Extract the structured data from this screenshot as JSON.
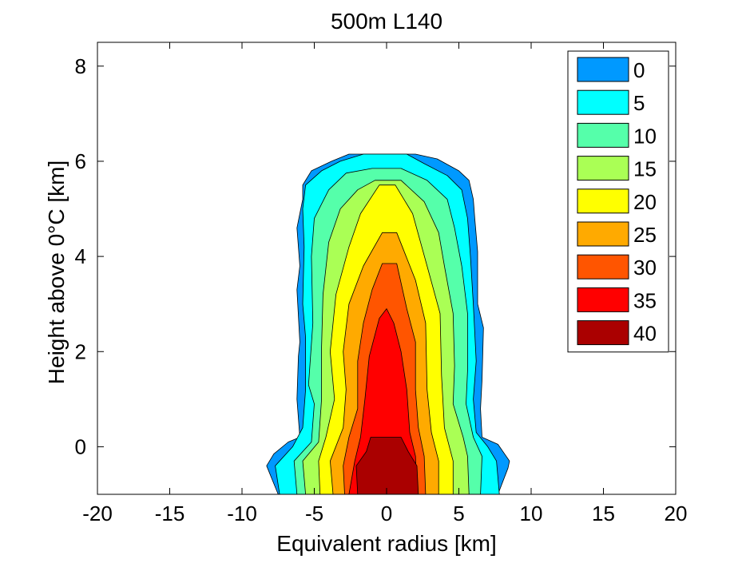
{
  "chart_data": {
    "type": "contourf",
    "title": "500m L140",
    "xlabel": "Equivalent radius [km]",
    "ylabel": "Height above 0°C [km]",
    "xlim": [
      -20,
      20
    ],
    "ylim": [
      -1,
      8.5
    ],
    "xticks": [
      -20,
      -15,
      -10,
      -5,
      0,
      5,
      10,
      15,
      20
    ],
    "yticks": [
      0,
      2,
      4,
      6,
      8
    ],
    "legend_position": "top-right",
    "grid": false,
    "levels": [
      {
        "label": "0",
        "color": "#0099ff"
      },
      {
        "label": "5",
        "color": "#00ffff"
      },
      {
        "label": "10",
        "color": "#55ffaa"
      },
      {
        "label": "15",
        "color": "#aaff55"
      },
      {
        "label": "20",
        "color": "#ffff00"
      },
      {
        "label": "25",
        "color": "#ffaa00"
      },
      {
        "label": "30",
        "color": "#ff5500"
      },
      {
        "label": "35",
        "color": "#ff0000"
      },
      {
        "label": "40",
        "color": "#aa0000"
      }
    ],
    "contours": [
      {
        "label": "0",
        "xy": [
          [
            -7.5,
            -1
          ],
          [
            -8.3,
            -0.4
          ],
          [
            -7.8,
            -0.15
          ],
          [
            -6.8,
            0.1
          ],
          [
            -6,
            0.2
          ],
          [
            -6.2,
            1
          ],
          [
            -6.1,
            1.9
          ],
          [
            -6,
            2.2
          ],
          [
            -6.2,
            3.3
          ],
          [
            -6,
            3.8
          ],
          [
            -6.2,
            4.6
          ],
          [
            -5.8,
            5.2
          ],
          [
            -5.8,
            5.5
          ],
          [
            -5.2,
            5.8
          ],
          [
            -3.8,
            6
          ],
          [
            -2.6,
            6.15
          ],
          [
            0,
            6.15
          ],
          [
            2,
            6.15
          ],
          [
            3.5,
            6.05
          ],
          [
            5,
            5.8
          ],
          [
            5.7,
            5.6
          ],
          [
            6,
            5.2
          ],
          [
            6.1,
            4.8
          ],
          [
            6.3,
            4.1
          ],
          [
            6.3,
            3
          ],
          [
            6.7,
            2.5
          ],
          [
            6.6,
            1.4
          ],
          [
            6.5,
            0.8
          ],
          [
            6.6,
            0.2
          ],
          [
            7.7,
            0.05
          ],
          [
            8.5,
            -0.3
          ],
          [
            8.4,
            -0.45
          ],
          [
            7.7,
            -1
          ]
        ]
      },
      {
        "label": "5",
        "xy": [
          [
            -7.4,
            -1
          ],
          [
            -7.7,
            -0.4
          ],
          [
            -6.5,
            0
          ],
          [
            -5.8,
            0.4
          ],
          [
            -5.6,
            1.2
          ],
          [
            -5.6,
            2.3
          ],
          [
            -5.8,
            3
          ],
          [
            -5.7,
            4.2
          ],
          [
            -5.8,
            5
          ],
          [
            -5.6,
            5.5
          ],
          [
            -4.5,
            5.8
          ],
          [
            -3.2,
            6
          ],
          [
            -1.6,
            6.15
          ],
          [
            1.4,
            6.15
          ],
          [
            2.6,
            5.95
          ],
          [
            4.2,
            5.7
          ],
          [
            5.2,
            5.4
          ],
          [
            5.6,
            4.8
          ],
          [
            5.8,
            4
          ],
          [
            6,
            3
          ],
          [
            6.2,
            1.8
          ],
          [
            6,
            1
          ],
          [
            6.2,
            0.3
          ],
          [
            7,
            0
          ],
          [
            7.6,
            -0.3
          ],
          [
            7.8,
            -1
          ]
        ]
      },
      {
        "label": "10",
        "xy": [
          [
            -6.2,
            -1
          ],
          [
            -6.4,
            -0.3
          ],
          [
            -5.2,
            0.1
          ],
          [
            -5,
            0.9
          ],
          [
            -5.4,
            1.3
          ],
          [
            -5.1,
            2.6
          ],
          [
            -5.2,
            4
          ],
          [
            -5,
            4.8
          ],
          [
            -4,
            5.4
          ],
          [
            -2.8,
            5.75
          ],
          [
            -1,
            5.85
          ],
          [
            1,
            5.85
          ],
          [
            2.8,
            5.6
          ],
          [
            4.2,
            5.2
          ],
          [
            4.7,
            4.6
          ],
          [
            5.2,
            3.8
          ],
          [
            5.6,
            2.8
          ],
          [
            5.6,
            1.6
          ],
          [
            5.5,
            0.9
          ],
          [
            6,
            0.2
          ],
          [
            6.6,
            -0.2
          ],
          [
            6.5,
            -1
          ]
        ]
      },
      {
        "label": "15",
        "xy": [
          [
            -5.6,
            -1
          ],
          [
            -5.8,
            -0.3
          ],
          [
            -4.7,
            0.1
          ],
          [
            -4.5,
            1
          ],
          [
            -4.5,
            2.1
          ],
          [
            -4.4,
            3.2
          ],
          [
            -4,
            4.3
          ],
          [
            -3.2,
            5
          ],
          [
            -2,
            5.4
          ],
          [
            -0.8,
            5.6
          ],
          [
            1,
            5.6
          ],
          [
            2.6,
            5.15
          ],
          [
            3.6,
            4.5
          ],
          [
            4,
            3.8
          ],
          [
            4.6,
            2.8
          ],
          [
            4.7,
            1.7
          ],
          [
            4.6,
            0.9
          ],
          [
            5.3,
            0.2
          ],
          [
            5.6,
            -0.2
          ],
          [
            5.7,
            -1
          ]
        ]
      },
      {
        "label": "20",
        "xy": [
          [
            -4.6,
            -1
          ],
          [
            -4.7,
            -0.3
          ],
          [
            -4.2,
            0.2
          ],
          [
            -3.6,
            1
          ],
          [
            -3.9,
            2
          ],
          [
            -3.5,
            3.2
          ],
          [
            -2.6,
            4.2
          ],
          [
            -1.8,
            4.9
          ],
          [
            -0.5,
            5.5
          ],
          [
            0.6,
            5.5
          ],
          [
            1.8,
            4.9
          ],
          [
            2.8,
            3.8
          ],
          [
            3.7,
            2.8
          ],
          [
            3.8,
            1.5
          ],
          [
            4,
            0.4
          ],
          [
            4.6,
            -0.3
          ],
          [
            4.6,
            -1
          ]
        ]
      },
      {
        "label": "25",
        "xy": [
          [
            -3.7,
            -1
          ],
          [
            -3.9,
            -0.3
          ],
          [
            -3,
            0.4
          ],
          [
            -2.8,
            1.2
          ],
          [
            -3,
            2
          ],
          [
            -2.6,
            3
          ],
          [
            -1.6,
            3.8
          ],
          [
            -0.3,
            4.5
          ],
          [
            0.7,
            4.5
          ],
          [
            2,
            3.5
          ],
          [
            2.7,
            2.6
          ],
          [
            2.8,
            1.2
          ],
          [
            3.1,
            0.3
          ],
          [
            3.6,
            -0.3
          ],
          [
            3.6,
            -1
          ]
        ]
      },
      {
        "label": "30",
        "xy": [
          [
            -2.9,
            -1
          ],
          [
            -3,
            -0.4
          ],
          [
            -2.6,
            0.2
          ],
          [
            -2,
            0.8
          ],
          [
            -2,
            1.8
          ],
          [
            -1.6,
            2.6
          ],
          [
            -1,
            3.3
          ],
          [
            -0.3,
            3.85
          ],
          [
            0.7,
            3.85
          ],
          [
            1.4,
            2.9
          ],
          [
            2,
            2.2
          ],
          [
            2,
            1.2
          ],
          [
            2.2,
            0.4
          ],
          [
            2.6,
            -0.2
          ],
          [
            2.7,
            -1
          ]
        ]
      },
      {
        "label": "35",
        "xy": [
          [
            -2.6,
            -1
          ],
          [
            -2.2,
            -0.3
          ],
          [
            -1.8,
            0.2
          ],
          [
            -1.5,
            1
          ],
          [
            -1.2,
            1.9
          ],
          [
            -0.5,
            2.7
          ],
          [
            0,
            2.9
          ],
          [
            0.5,
            2.6
          ],
          [
            1,
            2
          ],
          [
            1.4,
            1.2
          ],
          [
            1.6,
            0.3
          ],
          [
            2,
            -0.2
          ],
          [
            2.1,
            -1
          ]
        ]
      },
      {
        "label": "40",
        "xy": [
          [
            -2,
            -1
          ],
          [
            -2.1,
            -0.4
          ],
          [
            -1.4,
            -0.1
          ],
          [
            -1.1,
            0.2
          ],
          [
            1,
            0.2
          ],
          [
            1.5,
            -0.1
          ],
          [
            2.1,
            -0.4
          ],
          [
            2.2,
            -1
          ]
        ]
      }
    ]
  }
}
